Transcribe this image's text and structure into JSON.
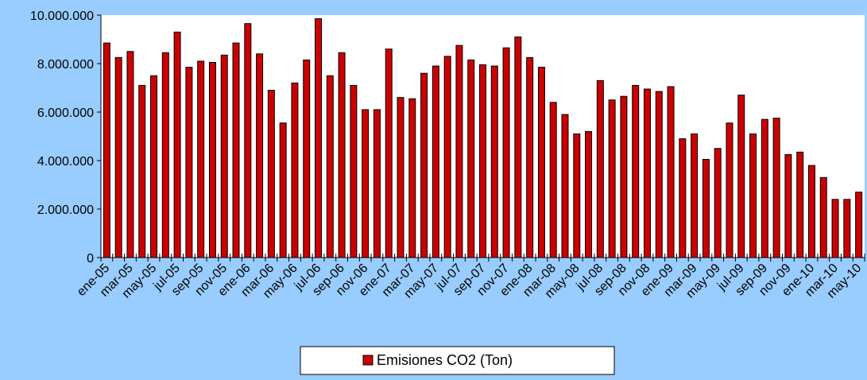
{
  "chart_data": {
    "type": "bar",
    "categories": [
      "ene-05",
      null,
      "mar-05",
      null,
      "may-05",
      null,
      "jul-05",
      null,
      "sep-05",
      null,
      "nov-05",
      null,
      "ene-06",
      null,
      "mar-06",
      null,
      "may-06",
      null,
      "jul-06",
      null,
      "sep-06",
      null,
      "nov-06",
      null,
      "ene-07",
      null,
      "mar-07",
      null,
      "may-07",
      null,
      "jul-07",
      null,
      "sep-07",
      null,
      "nov-07",
      null,
      "ene-08",
      null,
      "mar-08",
      null,
      "may-08",
      null,
      "jul-08",
      null,
      "sep-08",
      null,
      "nov-08",
      null,
      "ene-09",
      null,
      "mar-09",
      null,
      "may-09",
      null,
      "jul-09",
      null,
      "sep-09",
      null,
      "nov-09",
      null,
      "ene-10",
      null,
      "mar-10",
      null,
      "may-10"
    ],
    "series": [
      {
        "name": "Emisiones CO2 (Ton)",
        "color": "#cc0000",
        "values": [
          8850000,
          8250000,
          8500000,
          7100000,
          7500000,
          8450000,
          9300000,
          7850000,
          8100000,
          8050000,
          8350000,
          8850000,
          9650000,
          8400000,
          6900000,
          5550000,
          7200000,
          8150000,
          9850000,
          7500000,
          8450000,
          7100000,
          6100000,
          6100000,
          8600000,
          6600000,
          6550000,
          7600000,
          7900000,
          8300000,
          8750000,
          8150000,
          7950000,
          7900000,
          8650000,
          9100000,
          8250000,
          7850000,
          6400000,
          5900000,
          5100000,
          5200000,
          7300000,
          6500000,
          6650000,
          7100000,
          6950000,
          6850000,
          7050000,
          4900000,
          5100000,
          4050000,
          4500000,
          5550000,
          6700000,
          5100000,
          5700000,
          5750000,
          4250000,
          4350000,
          3800000,
          3300000,
          2400000,
          2400000,
          2700000
        ]
      }
    ],
    "ylim": [
      0,
      10000000
    ],
    "yticks": [
      0,
      {
        "value": 2000000,
        "label": "2.000.000"
      },
      {
        "value": 4000000,
        "label": "4.000.000"
      },
      {
        "value": 6000000,
        "label": "6.000.000"
      },
      {
        "value": 8000000,
        "label": "8.000.000"
      },
      {
        "value": 10000000,
        "label": "10.000.000"
      }
    ],
    "legend": "bottom"
  }
}
